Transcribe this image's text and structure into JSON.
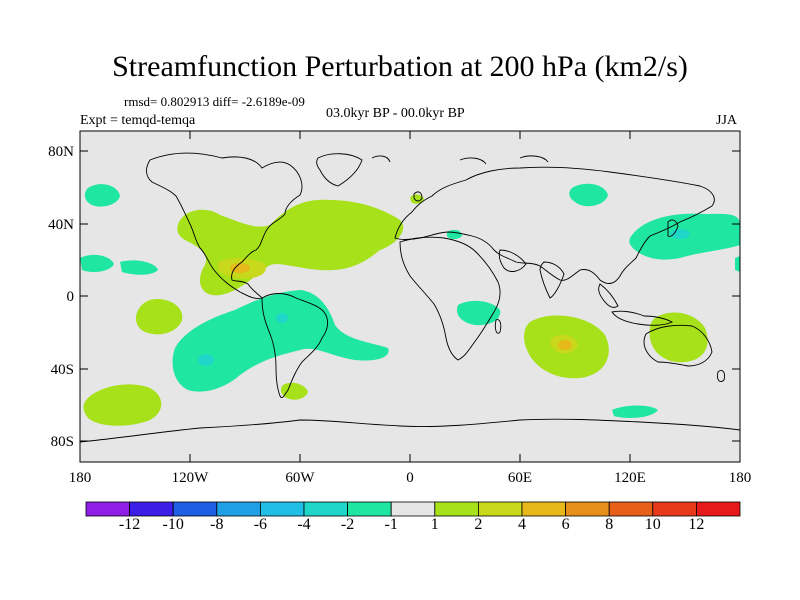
{
  "title": "Streamfunction Perturbation at 200 hPa (km2/s)",
  "stats": "rmsd= 0.802913 diff= -2.6189e-09",
  "experiment": "Expt = temqd-temqa",
  "period": "03.0kyr BP - 00.0kyr BP",
  "season": "JJA",
  "lat_ticks": [
    "80N",
    "40N",
    "0",
    "40S",
    "80S"
  ],
  "lon_ticks": [
    "180",
    "120W",
    "60W",
    "0",
    "60E",
    "120E",
    "180"
  ],
  "colorbar": {
    "labels": [
      "-12",
      "-10",
      "-8",
      "-6",
      "-4",
      "-2",
      "-1",
      "1",
      "2",
      "4",
      "6",
      "8",
      "10",
      "12"
    ],
    "colors": [
      "#8f1fe6",
      "#3b1fe6",
      "#1f5fe6",
      "#1f9fe6",
      "#1fbfe6",
      "#1fd6c8",
      "#1fe6a0",
      "#e6e6e6",
      "#a6e11a",
      "#c8d81a",
      "#e6b81a",
      "#e6901a",
      "#e6601a",
      "#e63a1a",
      "#e61a1a"
    ]
  },
  "colors": {
    "background": "#e6e6e6",
    "level_neg2": "#1fe6a0",
    "level_neg4": "#1fd6c8",
    "level_pos2": "#a6e11a",
    "level_pos4": "#c8d81a",
    "level_pos6": "#e6b81a"
  }
}
